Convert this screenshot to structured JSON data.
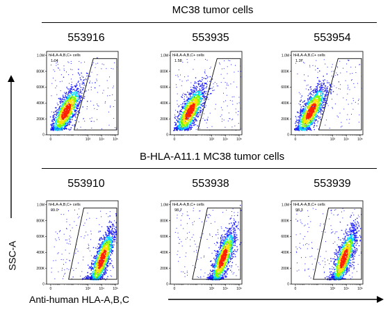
{
  "groups": [
    {
      "title": "MC38 tumor cells"
    },
    {
      "title": "B-HLA-A11.1 MC38 tumor cells"
    }
  ],
  "axes": {
    "x_label": "Anti-human HLA-A,B,C",
    "y_label": "SSC-A"
  },
  "colors": {
    "density_low": "#1a1aff",
    "density_mid": "#00d5ff",
    "density_mid2": "#7dff00",
    "density_high": "#ffde00",
    "density_peak": "#ff2000",
    "gate": "#000000"
  },
  "chart_data": [
    {
      "type": "scatter",
      "subtype": "flow-cytometry-density",
      "group": "MC38 tumor cells",
      "title": "553916",
      "gate": {
        "name": "hHLA-A,B,C+ cells",
        "percent": "1.04"
      },
      "y_ticks": [
        "1.0M",
        "800K",
        "600K",
        "400K",
        "200K",
        "0"
      ],
      "x_ticks": [
        "0",
        "10³",
        "10⁴",
        "10⁵"
      ],
      "cluster": {
        "center_x": 1.4,
        "center_y": 300,
        "spread_x": 0.9,
        "spread_y": 150
      }
    },
    {
      "type": "scatter",
      "subtype": "flow-cytometry-density",
      "group": "MC38 tumor cells",
      "title": "553935",
      "gate": {
        "name": "hHLA-A,B,C+ cells",
        "percent": "1.58"
      },
      "y_ticks": [
        "1.0M",
        "800K",
        "600K",
        "400K",
        "200K",
        "0"
      ],
      "x_ticks": [
        "0",
        "10³",
        "10⁴",
        "10⁵"
      ],
      "cluster": {
        "center_x": 1.4,
        "center_y": 300,
        "spread_x": 0.9,
        "spread_y": 150
      }
    },
    {
      "type": "scatter",
      "subtype": "flow-cytometry-density",
      "group": "MC38 tumor cells",
      "title": "553954",
      "gate": {
        "name": "hHLA-A,B,C+ cells",
        "percent": "1.37"
      },
      "y_ticks": [
        "1.0M",
        "800K",
        "600K",
        "400K",
        "200K",
        "0"
      ],
      "x_ticks": [
        "0",
        "10³",
        "10⁴",
        "10⁵"
      ],
      "cluster": {
        "center_x": 1.4,
        "center_y": 300,
        "spread_x": 0.9,
        "spread_y": 150
      }
    },
    {
      "type": "scatter",
      "subtype": "flow-cytometry-density",
      "group": "B-HLA-A11.1 MC38 tumor cells",
      "title": "553910",
      "gate": {
        "name": "hHLA-A,B,C+ cells",
        "percent": "99.0"
      },
      "y_ticks": [
        "1.0M",
        "800K",
        "600K",
        "400K",
        "200K",
        "0"
      ],
      "x_ticks": [
        "0",
        "10³",
        "10⁴",
        "10⁵"
      ],
      "cluster": {
        "center_x": 4.0,
        "center_y": 320,
        "spread_x": 0.7,
        "spread_y": 180
      }
    },
    {
      "type": "scatter",
      "subtype": "flow-cytometry-density",
      "group": "B-HLA-A11.1 MC38 tumor cells",
      "title": "553938",
      "gate": {
        "name": "hHLA-A,B,C+ cells",
        "percent": "98.7"
      },
      "y_ticks": [
        "1.0M",
        "800K",
        "600K",
        "400K",
        "200K",
        "0"
      ],
      "x_ticks": [
        "0",
        "10³",
        "10⁴",
        "10⁵"
      ],
      "cluster": {
        "center_x": 3.8,
        "center_y": 330,
        "spread_x": 0.7,
        "spread_y": 180
      }
    },
    {
      "type": "scatter",
      "subtype": "flow-cytometry-density",
      "group": "B-HLA-A11.1 MC38 tumor cells",
      "title": "553939",
      "gate": {
        "name": "hHLA-A,B,C+ cells",
        "percent": "98.3"
      },
      "y_ticks": [
        "1.0M",
        "800K",
        "600K",
        "400K",
        "200K",
        "0"
      ],
      "x_ticks": [
        "0",
        "10³",
        "10⁴",
        "10⁵"
      ],
      "cluster": {
        "center_x": 3.8,
        "center_y": 330,
        "spread_x": 0.7,
        "spread_y": 180
      }
    }
  ]
}
